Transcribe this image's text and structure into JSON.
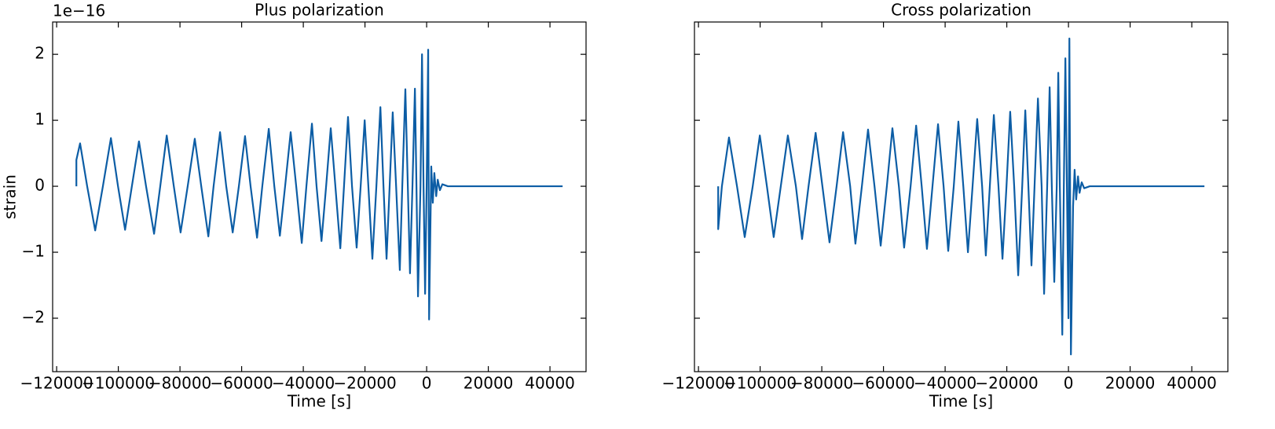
{
  "chart_data": [
    {
      "type": "line",
      "title": "Plus polarization",
      "xlabel": "Time [s]",
      "ylabel": "strain",
      "offset_label": "1e−16",
      "color": "#0c5da5",
      "xlim": [
        -121300,
        51700
      ],
      "ylim": [
        -2.81,
        2.49
      ],
      "xticks": [
        {
          "value": -120000,
          "label": "−120000"
        },
        {
          "value": -100000,
          "label": "−100000"
        },
        {
          "value": -80000,
          "label": "−80000"
        },
        {
          "value": -60000,
          "label": "−60000"
        },
        {
          "value": -40000,
          "label": "−40000"
        },
        {
          "value": -20000,
          "label": "−20000"
        },
        0,
        20000,
        40000
      ],
      "yticks": [
        {
          "value": -2,
          "label": "−2"
        },
        {
          "value": -1,
          "label": "−1"
        },
        0,
        1,
        2
      ],
      "x": [
        -113600,
        -113600,
        -112400,
        -110100,
        -107500,
        -105000,
        -102400,
        -100100,
        -97800,
        -95600,
        -93300,
        -91000,
        -88400,
        -86400,
        -84300,
        -82000,
        -79800,
        -77500,
        -75200,
        -73100,
        -70800,
        -69100,
        -67000,
        -65000,
        -62900,
        -60900,
        -58900,
        -57100,
        -55000,
        -53300,
        -51200,
        -49400,
        -47600,
        -45900,
        -44100,
        -42300,
        -40500,
        -39000,
        -37200,
        -35700,
        -34100,
        -32600,
        -31100,
        -29600,
        -28000,
        -26800,
        -25500,
        -24200,
        -22700,
        -21400,
        -20100,
        -18900,
        -17600,
        -16300,
        -15000,
        -14000,
        -13000,
        -12000,
        -11000,
        -9900,
        -8700,
        -7900,
        -6900,
        -6100,
        -5400,
        -4600,
        -3800,
        -3300,
        -2800,
        -2000,
        -1500,
        -1000,
        -500,
        0,
        500,
        800,
        1500,
        2000,
        2500,
        3100,
        3600,
        4300,
        5100,
        6900,
        44100
      ],
      "values": [
        0,
        0.4,
        0.65,
        0,
        -0.67,
        0,
        0.73,
        0,
        -0.66,
        0,
        0.68,
        0,
        -0.72,
        0,
        0.77,
        0,
        -0.7,
        0,
        0.72,
        0,
        -0.76,
        0,
        0.82,
        0,
        -0.7,
        0,
        0.76,
        0,
        -0.78,
        0,
        0.87,
        0,
        -0.75,
        0,
        0.82,
        0,
        -0.86,
        0,
        0.95,
        0,
        -0.83,
        0,
        0.88,
        0,
        -0.94,
        0,
        1.05,
        0,
        -0.93,
        0,
        1.0,
        0,
        -1.1,
        0,
        1.2,
        0,
        -1.1,
        0,
        1.12,
        0,
        -1.27,
        0,
        1.47,
        0,
        -1.32,
        0,
        1.48,
        0,
        -1.67,
        0,
        2.0,
        0,
        -1.63,
        0,
        2.07,
        -2.02,
        0.3,
        -0.25,
        0.2,
        -0.15,
        0.1,
        -0.06,
        0.03,
        0,
        0
      ]
    },
    {
      "type": "line",
      "title": "Cross polarization",
      "xlabel": "Time [s]",
      "color": "#0c5da5",
      "show_ytick_labels": false,
      "xlim": [
        -121300,
        51700
      ],
      "ylim": [
        -2.81,
        2.49
      ],
      "xticks": [
        {
          "value": -120000,
          "label": "−120000"
        },
        {
          "value": -100000,
          "label": "−100000"
        },
        {
          "value": -80000,
          "label": "−80000"
        },
        {
          "value": -60000,
          "label": "−60000"
        },
        {
          "value": -40000,
          "label": "−40000"
        },
        {
          "value": -20000,
          "label": "−20000"
        },
        0,
        20000,
        40000
      ],
      "yticks": [
        -2,
        -1,
        0,
        1,
        2
      ],
      "x": [
        -113600,
        -113600,
        -112400,
        -110100,
        -107500,
        -105000,
        -102400,
        -100100,
        -97800,
        -95600,
        -93300,
        -91000,
        -88400,
        -86400,
        -84300,
        -82000,
        -79800,
        -77500,
        -75200,
        -73100,
        -70800,
        -69100,
        -67000,
        -65000,
        -62900,
        -60900,
        -58900,
        -57100,
        -55000,
        -53300,
        -51200,
        -49400,
        -47600,
        -45900,
        -44100,
        -42300,
        -40500,
        -39000,
        -37200,
        -35700,
        -34100,
        -32600,
        -31100,
        -29600,
        -28000,
        -26800,
        -25500,
        -24200,
        -22700,
        -21400,
        -20100,
        -18900,
        -17600,
        -16300,
        -15000,
        -14000,
        -13000,
        -12000,
        -11000,
        -9900,
        -8700,
        -7900,
        -6900,
        -6100,
        -5400,
        -4600,
        -3800,
        -3300,
        -2800,
        -2000,
        -1500,
        -1000,
        -500,
        0,
        300,
        800,
        1500,
        2000,
        2500,
        3100,
        3600,
        4300,
        5100,
        6900,
        44100
      ],
      "values": [
        0,
        -0.65,
        0,
        0.74,
        0,
        -0.77,
        0,
        0.77,
        0,
        -0.77,
        0,
        0.77,
        0,
        -0.8,
        0,
        0.81,
        0,
        -0.85,
        0,
        0.82,
        0,
        -0.87,
        0,
        0.86,
        0,
        -0.9,
        0,
        0.88,
        0,
        -0.93,
        0,
        0.92,
        0,
        -0.95,
        0,
        0.94,
        0,
        -0.98,
        0,
        0.98,
        0,
        -1.0,
        0,
        1.02,
        0,
        -1.05,
        0,
        1.08,
        0,
        -1.1,
        0,
        1.13,
        0,
        -1.35,
        0,
        1.15,
        0,
        -1.2,
        0,
        1.33,
        0,
        -1.63,
        0,
        1.5,
        0,
        -1.45,
        0,
        1.72,
        0,
        -2.25,
        0,
        1.94,
        0,
        -2.0,
        2.24,
        -2.55,
        -0.3,
        0.25,
        -0.2,
        0.15,
        -0.1,
        0.06,
        -0.03,
        0,
        0
      ]
    }
  ]
}
